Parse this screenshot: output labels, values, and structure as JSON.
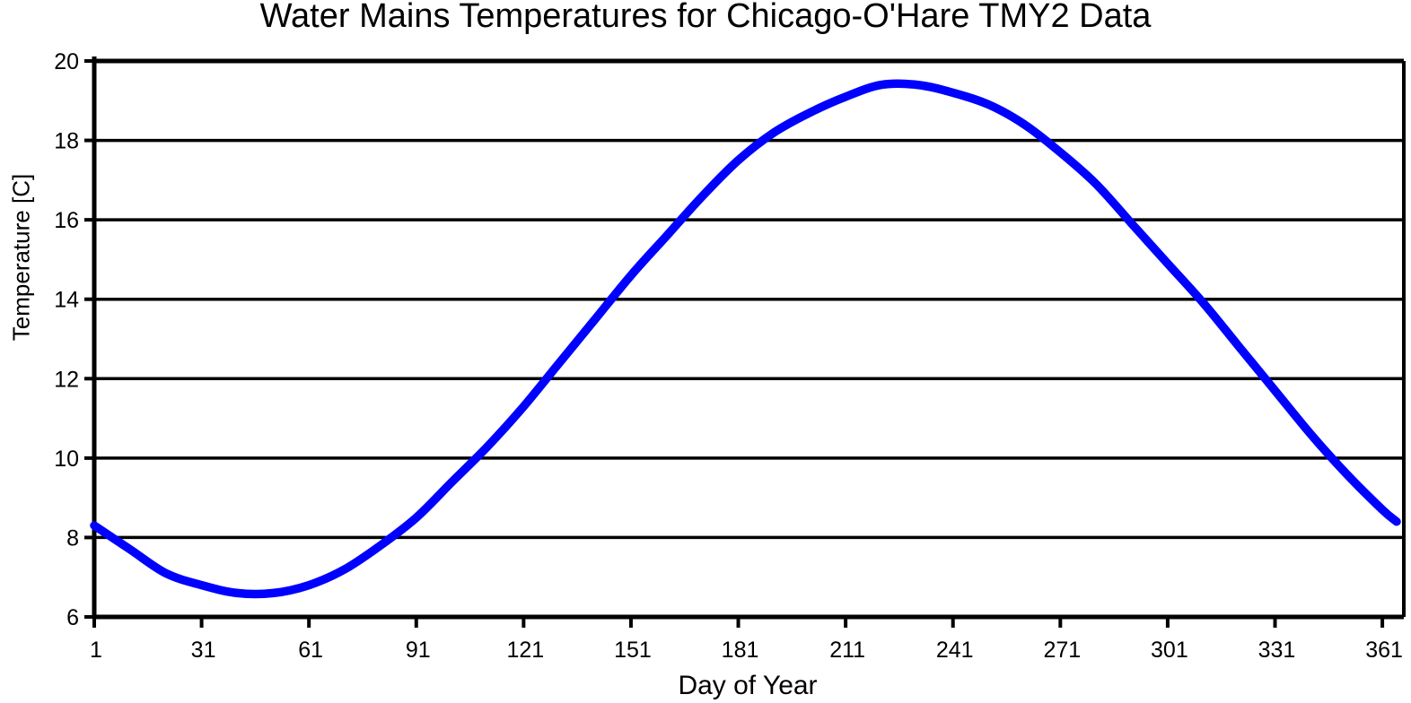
{
  "chart_data": {
    "type": "line",
    "title": "Water Mains Temperatures for Chicago-O'Hare TMY2 Data",
    "xlabel": "Day of Year",
    "ylabel": "Temperature [C]",
    "xlim": [
      1,
      367
    ],
    "ylim": [
      6,
      20
    ],
    "x_ticks": [
      1,
      31,
      61,
      91,
      121,
      151,
      181,
      211,
      241,
      271,
      301,
      331,
      361
    ],
    "y_ticks": [
      6,
      8,
      10,
      12,
      14,
      16,
      18,
      20
    ],
    "grid": "horizontal-only",
    "legend_position": "none",
    "colors": {
      "line": "#0000FF",
      "axis": "#000000",
      "grid": "#000000",
      "background": "#FFFFFF"
    },
    "observed": {
      "start_day1_C": 8.3,
      "min_C": 6.6,
      "min_day_approx": 45,
      "max_C": 19.4,
      "max_day_approx": 227,
      "end_day365_C": 8.4
    },
    "series": [
      {
        "color": "#0000FF",
        "points": [
          [
            1,
            8.3
          ],
          [
            11,
            7.7
          ],
          [
            21,
            7.1
          ],
          [
            31,
            6.8
          ],
          [
            41,
            6.6
          ],
          [
            51,
            6.6
          ],
          [
            61,
            6.8
          ],
          [
            71,
            7.2
          ],
          [
            81,
            7.8
          ],
          [
            91,
            8.5
          ],
          [
            101,
            9.4
          ],
          [
            111,
            10.3
          ],
          [
            121,
            11.3
          ],
          [
            131,
            12.4
          ],
          [
            141,
            13.5
          ],
          [
            151,
            14.6
          ],
          [
            161,
            15.6
          ],
          [
            171,
            16.6
          ],
          [
            181,
            17.5
          ],
          [
            191,
            18.2
          ],
          [
            201,
            18.7
          ],
          [
            211,
            19.1
          ],
          [
            221,
            19.4
          ],
          [
            231,
            19.4
          ],
          [
            241,
            19.2
          ],
          [
            251,
            18.9
          ],
          [
            261,
            18.4
          ],
          [
            271,
            17.7
          ],
          [
            281,
            16.9
          ],
          [
            291,
            15.9
          ],
          [
            301,
            14.9
          ],
          [
            311,
            13.9
          ],
          [
            321,
            12.8
          ],
          [
            331,
            11.7
          ],
          [
            341,
            10.6
          ],
          [
            351,
            9.6
          ],
          [
            361,
            8.7
          ],
          [
            365,
            8.4
          ]
        ]
      }
    ]
  }
}
